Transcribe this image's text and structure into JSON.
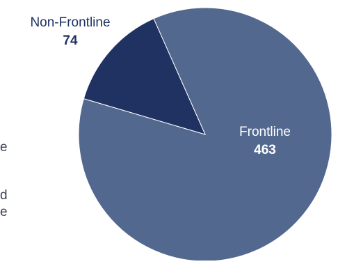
{
  "chart_data": {
    "type": "pie",
    "title": "",
    "slices": [
      {
        "label": "Frontline",
        "value": 463,
        "color": "#53688f",
        "label_color": "#ffffff"
      },
      {
        "label": "Non-Frontline",
        "value": 74,
        "color": "#1f3262",
        "label_color": "#1f3262"
      }
    ]
  },
  "edge_fragments": [
    "e",
    "d",
    "e"
  ]
}
